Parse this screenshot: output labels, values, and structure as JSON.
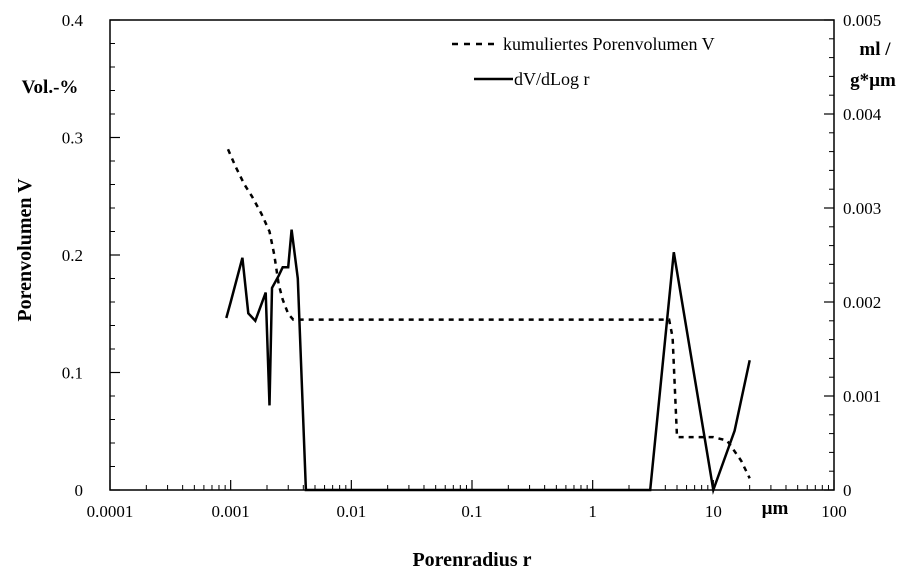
{
  "chart_data": {
    "type": "line",
    "xlabel": "Porenradius r",
    "x_unit_label": "µm",
    "x_scale": "log",
    "xlim": [
      0.0001,
      100
    ],
    "x_ticks": [
      0.0001,
      0.001,
      0.01,
      0.1,
      1,
      10,
      100
    ],
    "x_tick_labels": [
      "0.0001",
      "0.001",
      "0.01",
      "0.1",
      "1",
      "10",
      "100"
    ],
    "ylabel_left": "Porenvolumen V",
    "ylabel_left_unit": "Vol.-%",
    "ylim_left": [
      0,
      0.4
    ],
    "y_left_ticks": [
      0,
      0.1,
      0.2,
      0.3,
      0.4
    ],
    "y_left_tick_labels": [
      "0",
      "0.1",
      "0.2",
      "0.3",
      "0.4"
    ],
    "ylabel_right_unit_line1": "ml /",
    "ylabel_right_unit_line2": "g*µm",
    "ylim_right": [
      0,
      0.005
    ],
    "y_right_ticks": [
      0,
      0.001,
      0.002,
      0.003,
      0.004,
      0.005
    ],
    "y_right_tick_labels": [
      "0",
      "0.001",
      "0.002",
      "0.003",
      "0.004",
      "0.005"
    ],
    "grid": false,
    "legend_position": "top-right",
    "series": [
      {
        "name": "kumuliertes Porenvolumen V",
        "axis": "left",
        "style": "dashed",
        "x": [
          0.00095,
          0.0011,
          0.0013,
          0.0015,
          0.0018,
          0.0021,
          0.0023,
          0.0025,
          0.0027,
          0.003,
          0.0033,
          0.0038,
          0.01,
          0.1,
          1,
          3.5,
          4.3,
          4.6,
          5,
          7,
          10,
          13,
          17,
          20
        ],
        "y": [
          0.29,
          0.275,
          0.26,
          0.25,
          0.235,
          0.22,
          0.2,
          0.175,
          0.162,
          0.15,
          0.145,
          0.145,
          0.145,
          0.145,
          0.145,
          0.145,
          0.145,
          0.13,
          0.045,
          0.045,
          0.045,
          0.042,
          0.025,
          0.01
        ]
      },
      {
        "name": "dV/dLog r",
        "axis": "right",
        "style": "solid",
        "x": [
          0.00092,
          0.001,
          0.00125,
          0.0014,
          0.0016,
          0.00195,
          0.0021,
          0.0022,
          0.0025,
          0.0027,
          0.003,
          0.0032,
          0.0036,
          0.0042,
          3,
          4.7,
          10,
          15,
          20
        ],
        "y": [
          0.00183,
          0.002,
          0.00247,
          0.00188,
          0.0018,
          0.0021,
          0.0009,
          0.00215,
          0.00228,
          0.00237,
          0.00237,
          0.00277,
          0.00225,
          0.0,
          0.0,
          0.00253,
          0.0,
          0.00063,
          0.00138
        ]
      }
    ]
  }
}
